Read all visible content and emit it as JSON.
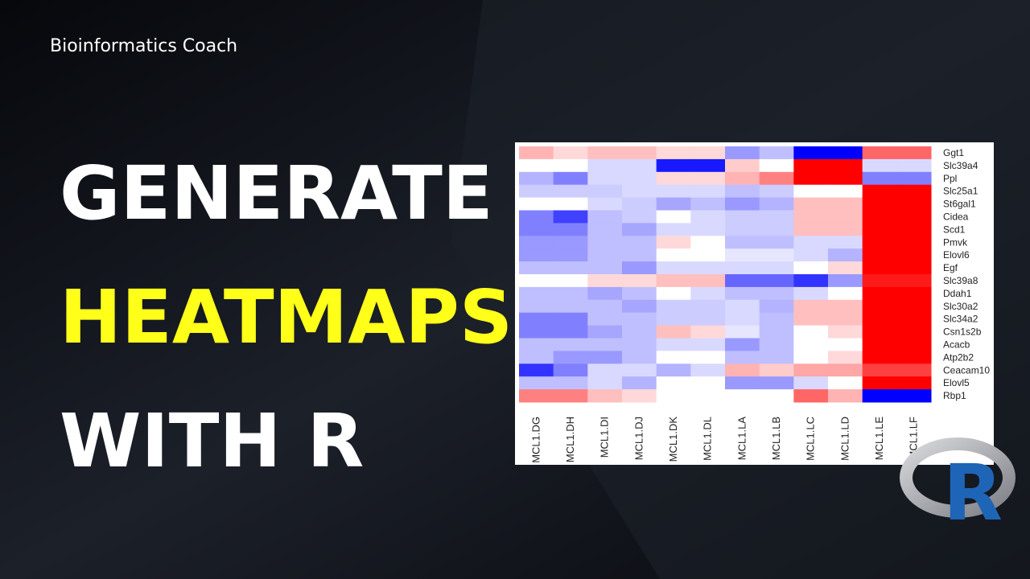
{
  "channel": "Bioinformatics Coach",
  "headline": [
    "GENERATE",
    "HEATMAPS",
    "WITH R"
  ],
  "logo_letter": "R",
  "chart_data": {
    "type": "heatmap",
    "rows": [
      "Ggt1",
      "Slc39a4",
      "Ppl",
      "Slc25a1",
      "St6gal1",
      "Cidea",
      "Scd1",
      "Pmvk",
      "Elovl6",
      "Egf",
      "Slc39a8",
      "Ddah1",
      "Slc30a2",
      "Slc34a2",
      "Csn1s2b",
      "Acacb",
      "Atp2b2",
      "Ceacam10",
      "Elovl5",
      "Rbp1"
    ],
    "columns": [
      "MCL1.DG",
      "MCL1.DH",
      "MCL1.DI",
      "MCL1.DJ",
      "MCL1.DK",
      "MCL1.DL",
      "MCL1.LA",
      "MCL1.LB",
      "MCL1.LC",
      "MCL1.LD",
      "MCL1.LE",
      "MCL1.LF"
    ],
    "values": [
      [
        0.6,
        0.3,
        0.5,
        0.5,
        0.3,
        0.3,
        -0.8,
        -0.5,
        -2,
        -2,
        1.2,
        1.2
      ],
      [
        0,
        0,
        -0.3,
        -0.3,
        -1.8,
        -1.8,
        0.4,
        0,
        2,
        2,
        -0.3,
        -0.3
      ],
      [
        -0.6,
        -1,
        -0.3,
        -0.3,
        0.3,
        0.3,
        0.6,
        1,
        2,
        2,
        -1,
        -1
      ],
      [
        -0.4,
        -0.4,
        -0.4,
        -0.3,
        -0.3,
        -0.3,
        -0.5,
        -0.4,
        0,
        0,
        2,
        2
      ],
      [
        0,
        0,
        -0.3,
        -0.4,
        -0.7,
        -0.5,
        -0.8,
        -0.6,
        0.5,
        0.5,
        2,
        2
      ],
      [
        -1,
        -1.5,
        -0.5,
        -0.4,
        0,
        -0.3,
        -0.4,
        -0.4,
        0.5,
        0.5,
        2,
        2
      ],
      [
        -1,
        -1,
        -0.5,
        -0.7,
        -0.3,
        -0.3,
        -0.4,
        -0.4,
        0.5,
        0.5,
        2,
        2
      ],
      [
        -0.8,
        -0.8,
        -0.5,
        -0.5,
        0.3,
        0,
        -0.5,
        -0.5,
        -0.3,
        -0.3,
        2,
        2
      ],
      [
        -0.8,
        -0.8,
        -0.5,
        -0.5,
        0,
        0,
        -0.2,
        -0.2,
        -0.3,
        -0.6,
        2,
        2
      ],
      [
        -0.5,
        -0.5,
        -0.5,
        -0.8,
        -0.3,
        -0.3,
        -0.3,
        -0.3,
        0,
        0.3,
        2,
        2
      ],
      [
        0,
        0,
        0.3,
        0.3,
        0.5,
        0.5,
        -1.2,
        -1.2,
        -1.6,
        -0.8,
        1.8,
        1.8
      ],
      [
        -0.5,
        -0.5,
        -0.7,
        -0.5,
        0,
        -0.3,
        -0.5,
        -0.5,
        -0.3,
        0,
        2,
        2
      ],
      [
        -0.5,
        -0.5,
        -0.5,
        -0.7,
        -0.4,
        -0.4,
        -0.3,
        -0.6,
        0.5,
        0.5,
        2,
        2
      ],
      [
        -1,
        -1,
        -0.5,
        -0.5,
        -0.4,
        -0.4,
        -0.3,
        -0.5,
        0.5,
        0.5,
        2,
        2
      ],
      [
        -1,
        -1,
        -0.7,
        -0.5,
        0.5,
        0.3,
        -0.2,
        -0.5,
        0,
        0.3,
        2,
        2
      ],
      [
        -0.5,
        -0.5,
        -0.5,
        -0.5,
        -0.3,
        -0.3,
        -0.8,
        -0.5,
        0,
        0,
        2,
        2
      ],
      [
        -0.5,
        -0.8,
        -0.8,
        -0.5,
        0,
        0,
        -0.5,
        -0.5,
        0,
        0.3,
        2,
        2
      ],
      [
        -1.6,
        -1,
        -0.3,
        -0.3,
        -0.6,
        -0.3,
        0.6,
        0.4,
        0.7,
        0.7,
        1.5,
        1.5
      ],
      [
        -0.5,
        -0.5,
        -0.3,
        -0.6,
        0,
        0,
        -0.8,
        -0.8,
        -0.3,
        0,
        2,
        2
      ],
      [
        1,
        1,
        0.5,
        0.3,
        0,
        0,
        0,
        0,
        1.2,
        0.6,
        -2,
        -2
      ]
    ],
    "zlim": [
      -2,
      2
    ],
    "colors": [
      "#0000ff",
      "#ffffff",
      "#ff0000"
    ]
  }
}
